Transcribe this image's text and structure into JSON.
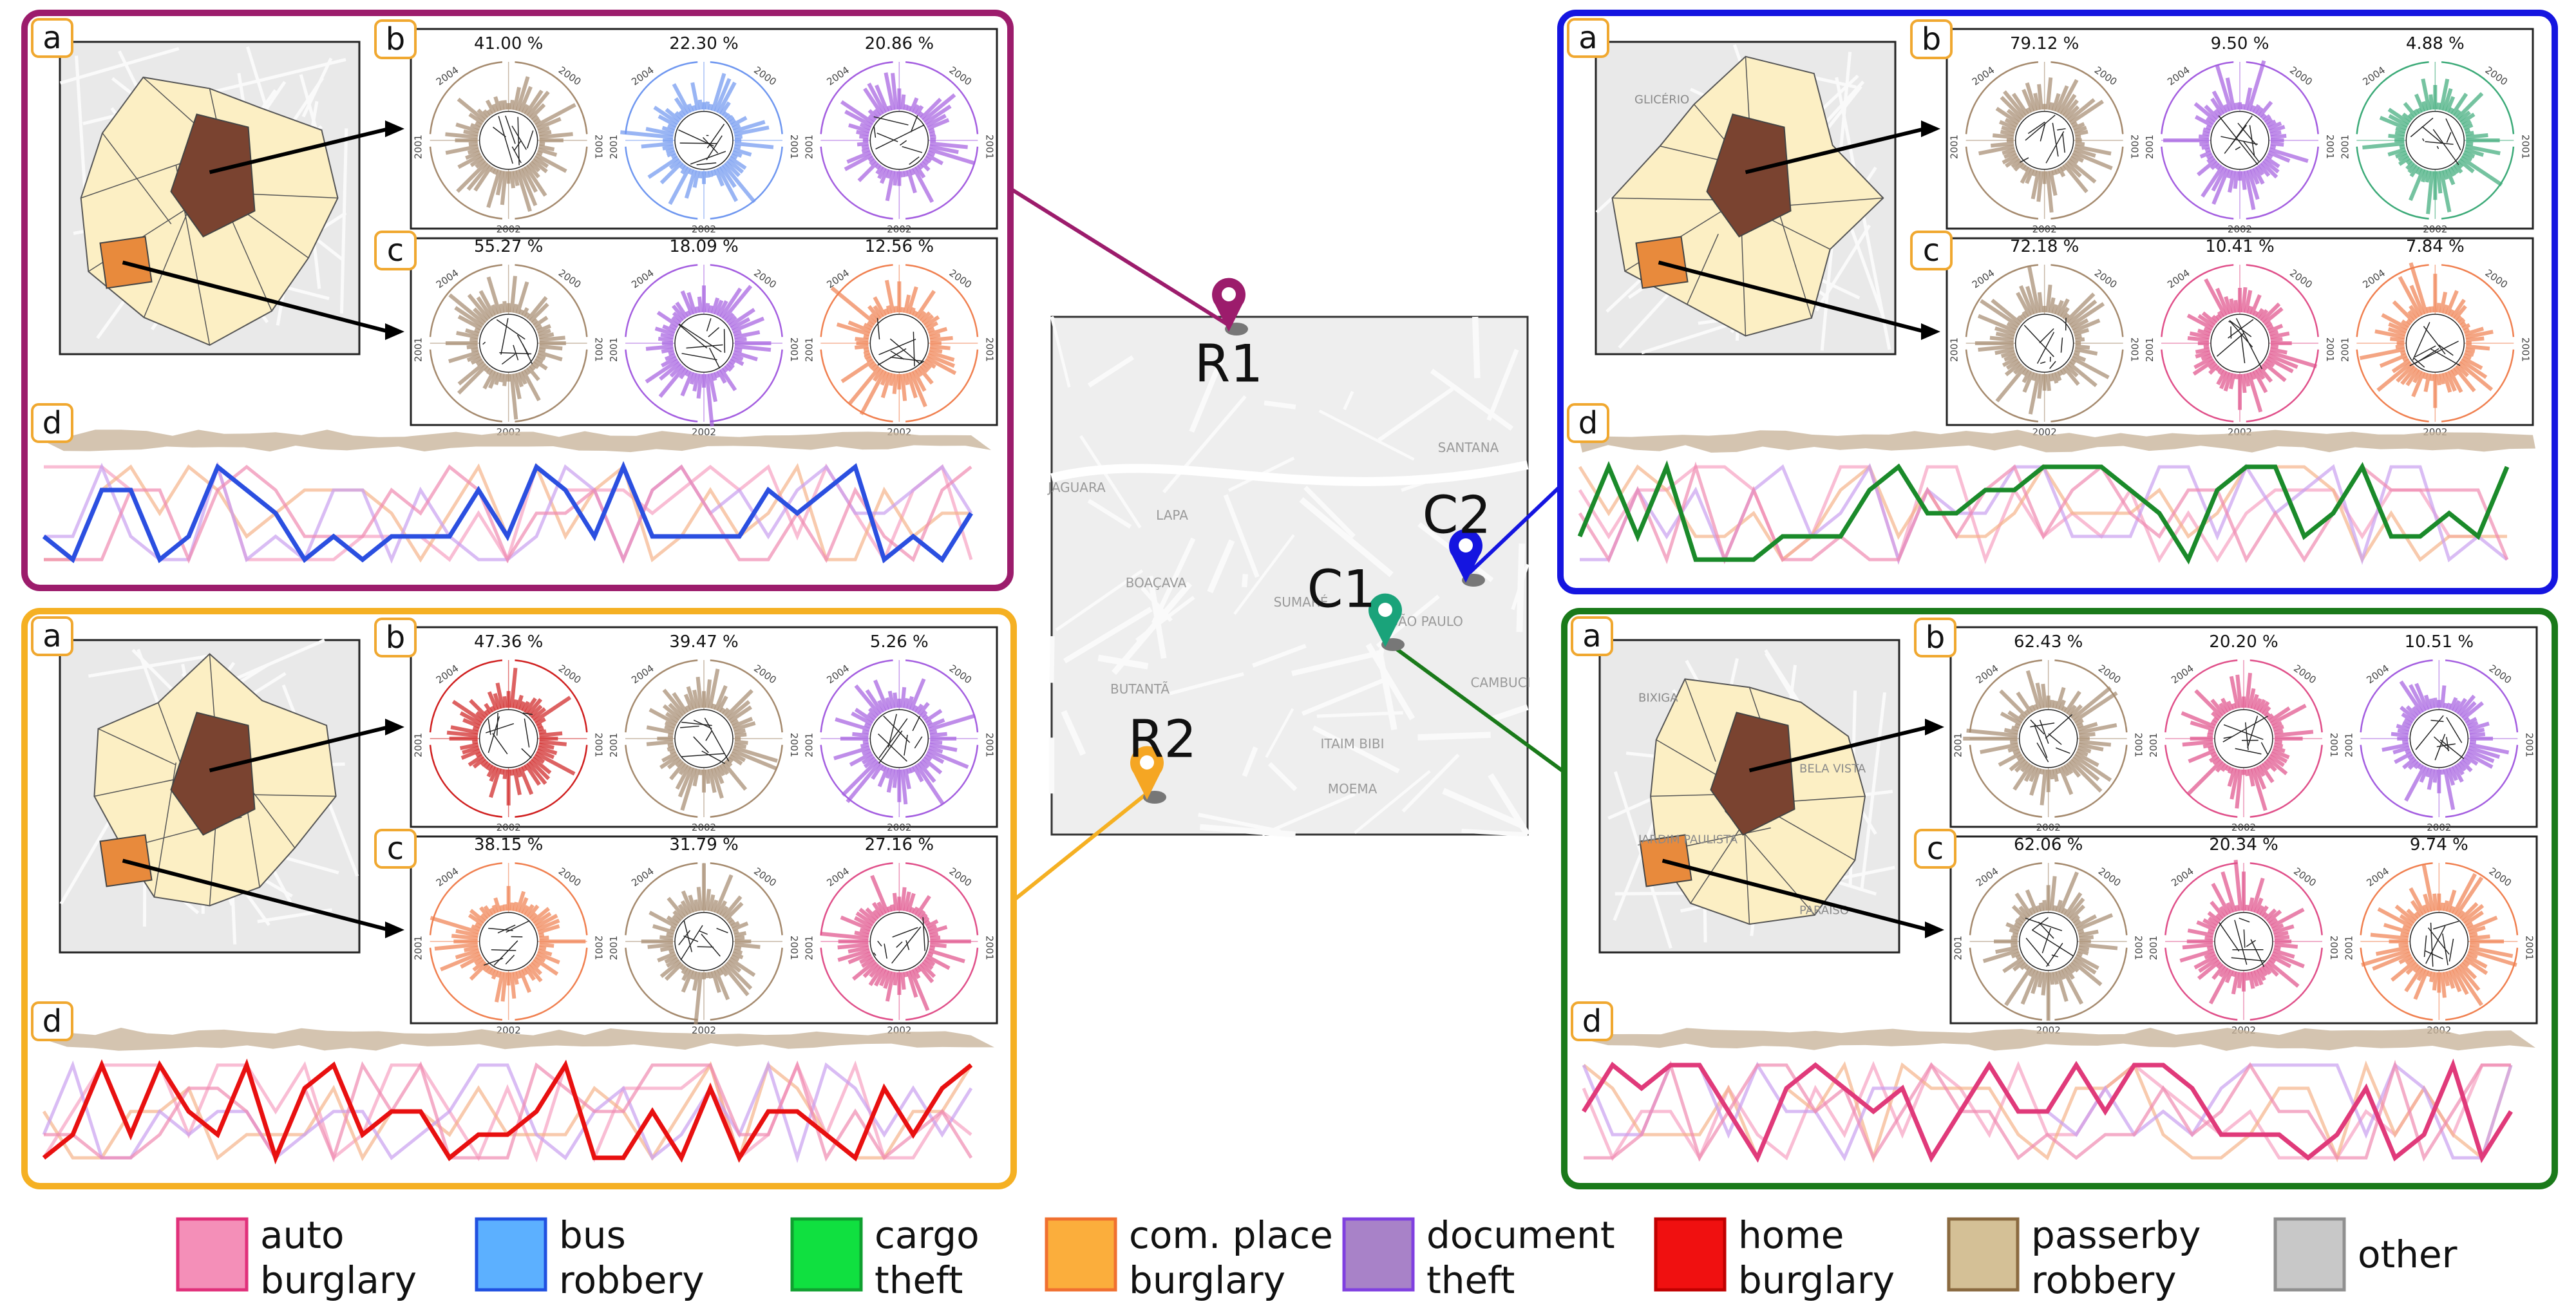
{
  "main_map": {
    "markers": [
      "R1",
      "C2",
      "C1",
      "R2"
    ],
    "marker_colors": [
      "#9c1c6c",
      "#1515e0",
      "#1aa37a",
      "#f5a623"
    ],
    "places": [
      "SANTANA",
      "JAGUARA",
      "LAPA",
      "BOAÇAVA",
      "SUMARÉ",
      "SÃO PAULO",
      "BUTANTÃ",
      "ITAIM BIBI",
      "CAMBUCI",
      "MOEMA"
    ]
  },
  "radial_years": [
    "2004",
    "2000",
    "2001",
    "2002"
  ],
  "panels": [
    {
      "color": "#9c1c6c",
      "labels": [
        "a",
        "b",
        "c",
        "d"
      ],
      "b": [
        "41.00 %",
        "22.30 %",
        "20.86 %"
      ],
      "b_colors": [
        "#a58a6e",
        "#6f97f0",
        "#a45ee0"
      ],
      "c": [
        "55.27 %",
        "18.09 %",
        "12.56 %"
      ],
      "c_colors": [
        "#a58a6e",
        "#a45ee0",
        "#f08050"
      ],
      "focus": "#2b4fe0",
      "places": []
    },
    {
      "color": "#1515e0",
      "labels": [
        "a",
        "b",
        "c",
        "d"
      ],
      "b": [
        "79.12 %",
        "9.50 %",
        "4.88 %"
      ],
      "b_colors": [
        "#a58a6e",
        "#a45ee0",
        "#3caa78"
      ],
      "c": [
        "72.18 %",
        "10.41 %",
        "7.84 %"
      ],
      "c_colors": [
        "#a58a6e",
        "#e0508a",
        "#f08050"
      ],
      "focus": "#1a8a2a",
      "places": [
        "GLICÉRIO"
      ]
    },
    {
      "color": "#f5b023",
      "labels": [
        "a",
        "b",
        "c",
        "d"
      ],
      "b": [
        "47.36 %",
        "39.47 %",
        "5.26 %"
      ],
      "b_colors": [
        "#d02020",
        "#a58a6e",
        "#a45ee0"
      ],
      "c": [
        "38.15 %",
        "31.79 %",
        "27.16 %"
      ],
      "c_colors": [
        "#f08050",
        "#a58a6e",
        "#e0508a"
      ],
      "focus": "#e81010",
      "places": []
    },
    {
      "color": "#1a7a1a",
      "labels": [
        "a",
        "b",
        "c",
        "d"
      ],
      "b": [
        "62.43 %",
        "20.20 %",
        "10.51 %"
      ],
      "b_colors": [
        "#a58a6e",
        "#e0508a",
        "#a45ee0"
      ],
      "c": [
        "62.06 %",
        "20.34 %",
        "9.74 %"
      ],
      "c_colors": [
        "#a58a6e",
        "#e0508a",
        "#f08050"
      ],
      "focus": "#e03a7a",
      "places": [
        "BIXIGA",
        "BELA VISTA",
        "JARDIM PAULISTA",
        "PARAÍSO"
      ]
    }
  ],
  "legend": [
    {
      "lines": [
        "auto",
        "burglary"
      ],
      "color": "#f48fb8",
      "border": "#e0307a"
    },
    {
      "lines": [
        "bus",
        "robbery"
      ],
      "color": "#5cb0ff",
      "border": "#2050e0"
    },
    {
      "lines": [
        "cargo",
        "theft"
      ],
      "color": "#10e040",
      "border": "#10a030"
    },
    {
      "lines": [
        "com. place",
        "burglary"
      ],
      "color": "#fbae3c",
      "border": "#f07030"
    },
    {
      "lines": [
        "document",
        "theft"
      ],
      "color": "#a882c8",
      "border": "#8040e0"
    },
    {
      "lines": [
        "home",
        "burglary"
      ],
      "color": "#f01010",
      "border": "#c00000"
    },
    {
      "lines": [
        "passerby",
        "robbery"
      ],
      "color": "#d4c096",
      "border": "#8a6a40"
    },
    {
      "lines": [
        "other"
      ],
      "color": "#c8c8c8",
      "border": "#909090"
    }
  ]
}
